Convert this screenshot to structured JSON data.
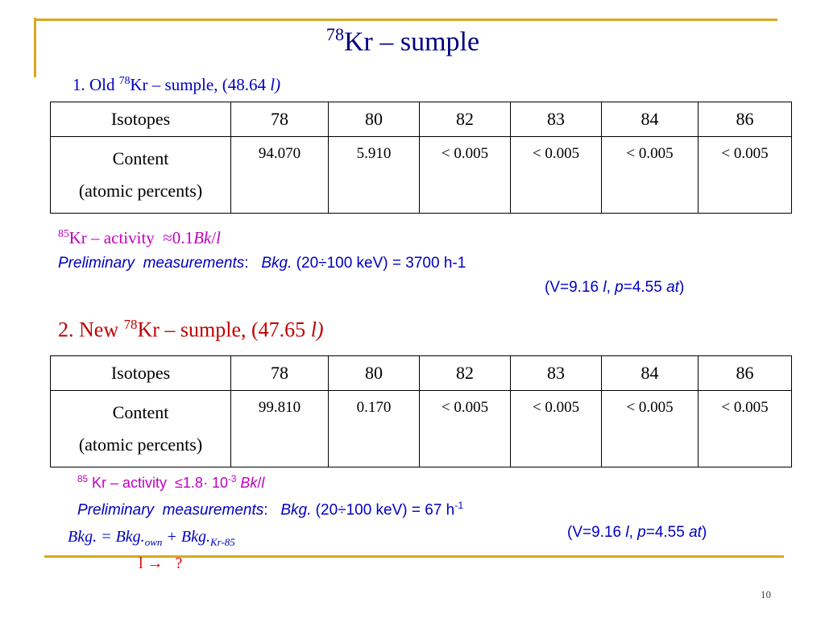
{
  "title": [
    "78",
    "Kr – sumple"
  ],
  "old_sample": {
    "heading": [
      "1. Old ",
      "78",
      "Kr – sumple, (48.64 ",
      "l",
      ")"
    ],
    "table": {
      "header": [
        "Isotopes",
        "78",
        "80",
        "82",
        "83",
        "84",
        "86"
      ],
      "row_label": [
        "Content",
        "(atomic percents)"
      ],
      "values": [
        "94.070",
        "5.910",
        "< 0.005",
        "< 0.005",
        "< 0.005",
        "< 0.005"
      ]
    },
    "activity": [
      "85",
      "Kr – activity  ≈0.1",
      "Bk",
      "/",
      "l"
    ],
    "measurement": [
      "Preliminary  measurements",
      ":   ",
      "Bkg.",
      " (20÷100 keV) = 3700 h-1"
    ],
    "conditions": [
      "(V=9.16 ",
      "l",
      ", ",
      "p",
      "=4.55 ",
      "at",
      ")"
    ]
  },
  "new_sample": {
    "heading": [
      "2. New ",
      "78",
      "Kr – sumple, (47.65 ",
      "l",
      ")"
    ],
    "table": {
      "header": [
        "Isotopes",
        "78",
        "80",
        "82",
        "83",
        "84",
        "86"
      ],
      "row_label": [
        "Content",
        "(atomic percents)"
      ],
      "values": [
        "99.810",
        "0.170",
        "< 0.005",
        "< 0.005",
        "< 0.005",
        "< 0.005"
      ]
    },
    "activity": [
      "85",
      " Kr – activity  ≤1.8· 10",
      "-3",
      " Bk",
      "/",
      "l"
    ],
    "measurement": [
      "Preliminary  measurements",
      ":   ",
      "Bkg.",
      " (20÷100 keV) = 67 h",
      "-1"
    ],
    "formula": [
      "Bkg. = Bkg.",
      "own",
      " + Bkg.",
      "Kr-85"
    ],
    "conditions": [
      "(V=9.16 ",
      "l",
      ", ",
      "p",
      "=4.55 ",
      "at",
      ")"
    ],
    "question": "l →   ?"
  },
  "page_number": "10"
}
